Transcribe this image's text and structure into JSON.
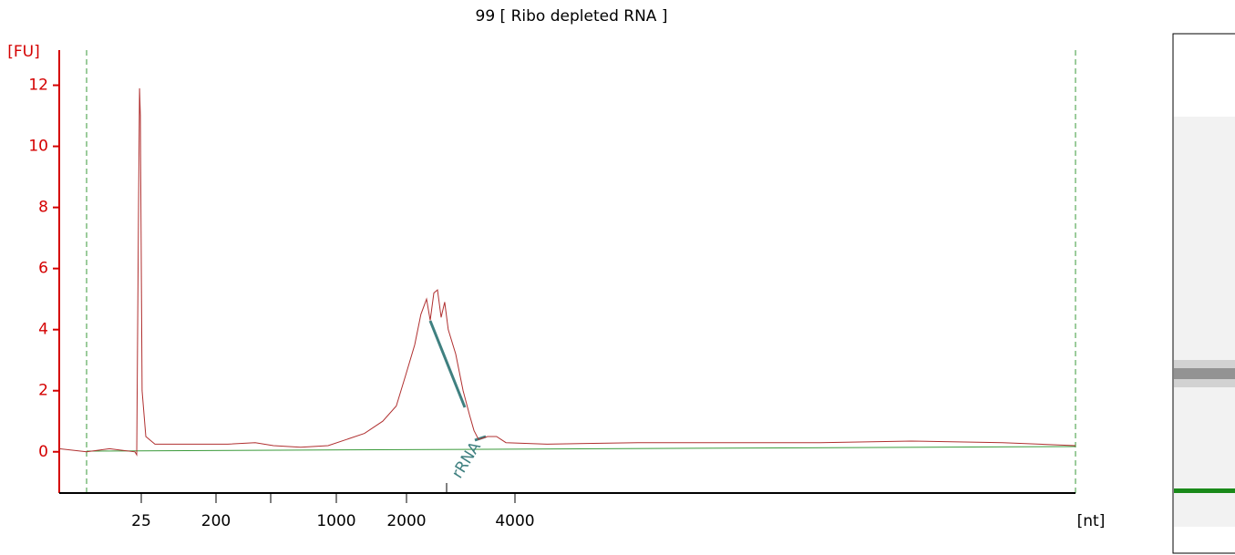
{
  "chart_data": {
    "type": "line",
    "title": "99  [ Ribo depleted RNA ]",
    "y_label": "[FU]",
    "x_label": "[nt]",
    "annotation": "rRNA",
    "color": "#b03030",
    "axis_color": "#d40000",
    "x": [
      3,
      6.1,
      11,
      21.2,
      22.2,
      23.3,
      23.9,
      24.4,
      25.6,
      28.4,
      36.6,
      78,
      234,
      338,
      431,
      621,
      896,
      1104,
      1321,
      1581,
      1809,
      1982,
      2108,
      2193,
      2274,
      2327,
      2382,
      2438,
      2495,
      2553,
      2612,
      2739,
      2871,
      2992,
      3078,
      3170,
      3357,
      3556,
      3776,
      4920,
      8860,
      15960,
      28770,
      51880,
      93540,
      150000
    ],
    "values": [
      0.1,
      0.0,
      0.1,
      0.0,
      -0.1,
      8,
      11.9,
      11,
      2,
      0.5,
      0.25,
      0.25,
      0.25,
      0.3,
      0.2,
      0.15,
      0.2,
      0.4,
      0.6,
      1.0,
      1.5,
      2.5,
      3.5,
      4.5,
      5.0,
      4.3,
      5.2,
      5.3,
      4.4,
      4.9,
      4.0,
      3.2,
      2.0,
      1.2,
      0.7,
      0.4,
      0.5,
      0.5,
      0.3,
      0.25,
      0.3,
      0.3,
      0.3,
      0.35,
      0.3,
      0.2
    ],
    "xlim": [
      3,
      150000
    ],
    "xticks": [
      25,
      200,
      1000,
      2000,
      4000
    ],
    "ylim": [
      -1.35,
      13.15
    ],
    "yticks": [
      0,
      2,
      4,
      6,
      8,
      10,
      12
    ]
  }
}
